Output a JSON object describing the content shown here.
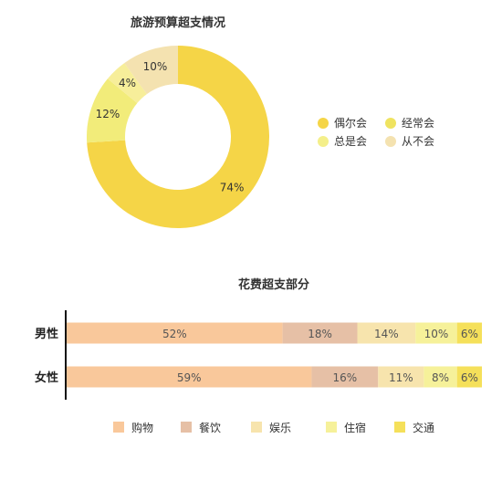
{
  "chart_data": [
    {
      "type": "pie",
      "title": "旅游预算超支情况",
      "slices": [
        {
          "name": "偶尔会",
          "value": 74,
          "label": "74%",
          "color": "#f5d547"
        },
        {
          "name": "总是会",
          "value": 12,
          "label": "12%",
          "color": "#f2ec7a"
        },
        {
          "name": "经常会",
          "value": 4,
          "label": "4%",
          "color": "#f7ee9a"
        },
        {
          "name": "从不会",
          "value": 10,
          "label": "10%",
          "color": "#f4e2b0"
        }
      ],
      "legend": [
        {
          "name": "偶尔会",
          "color": "#f5d547"
        },
        {
          "name": "经常会",
          "color": "#efe360"
        },
        {
          "name": "总是会",
          "color": "#f4ef8a"
        },
        {
          "name": "从不会",
          "color": "#f4e2b0"
        }
      ],
      "legend_position": "right"
    },
    {
      "type": "bar",
      "orientation": "horizontal",
      "stacked": true,
      "title": "花费超支部分",
      "categories": [
        "男性",
        "女性"
      ],
      "series": [
        {
          "name": "购物",
          "values": [
            52,
            59
          ],
          "labels": [
            "52%",
            "59%"
          ],
          "color": "#f9c89b"
        },
        {
          "name": "餐饮",
          "values": [
            18,
            16
          ],
          "labels": [
            "18%",
            "16%"
          ],
          "color": "#e6c0a6"
        },
        {
          "name": "娱乐",
          "values": [
            14,
            11
          ],
          "labels": [
            "14%",
            "11%"
          ],
          "color": "#f7e4ad"
        },
        {
          "name": "住宿",
          "values": [
            10,
            8
          ],
          "labels": [
            "10%",
            "8%"
          ],
          "color": "#f6f19a"
        },
        {
          "name": "交通",
          "values": [
            6,
            6
          ],
          "labels": [
            "6%",
            "6%"
          ],
          "color": "#f5e05a"
        }
      ],
      "xlim": [
        0,
        100
      ],
      "legend_position": "bottom"
    }
  ]
}
